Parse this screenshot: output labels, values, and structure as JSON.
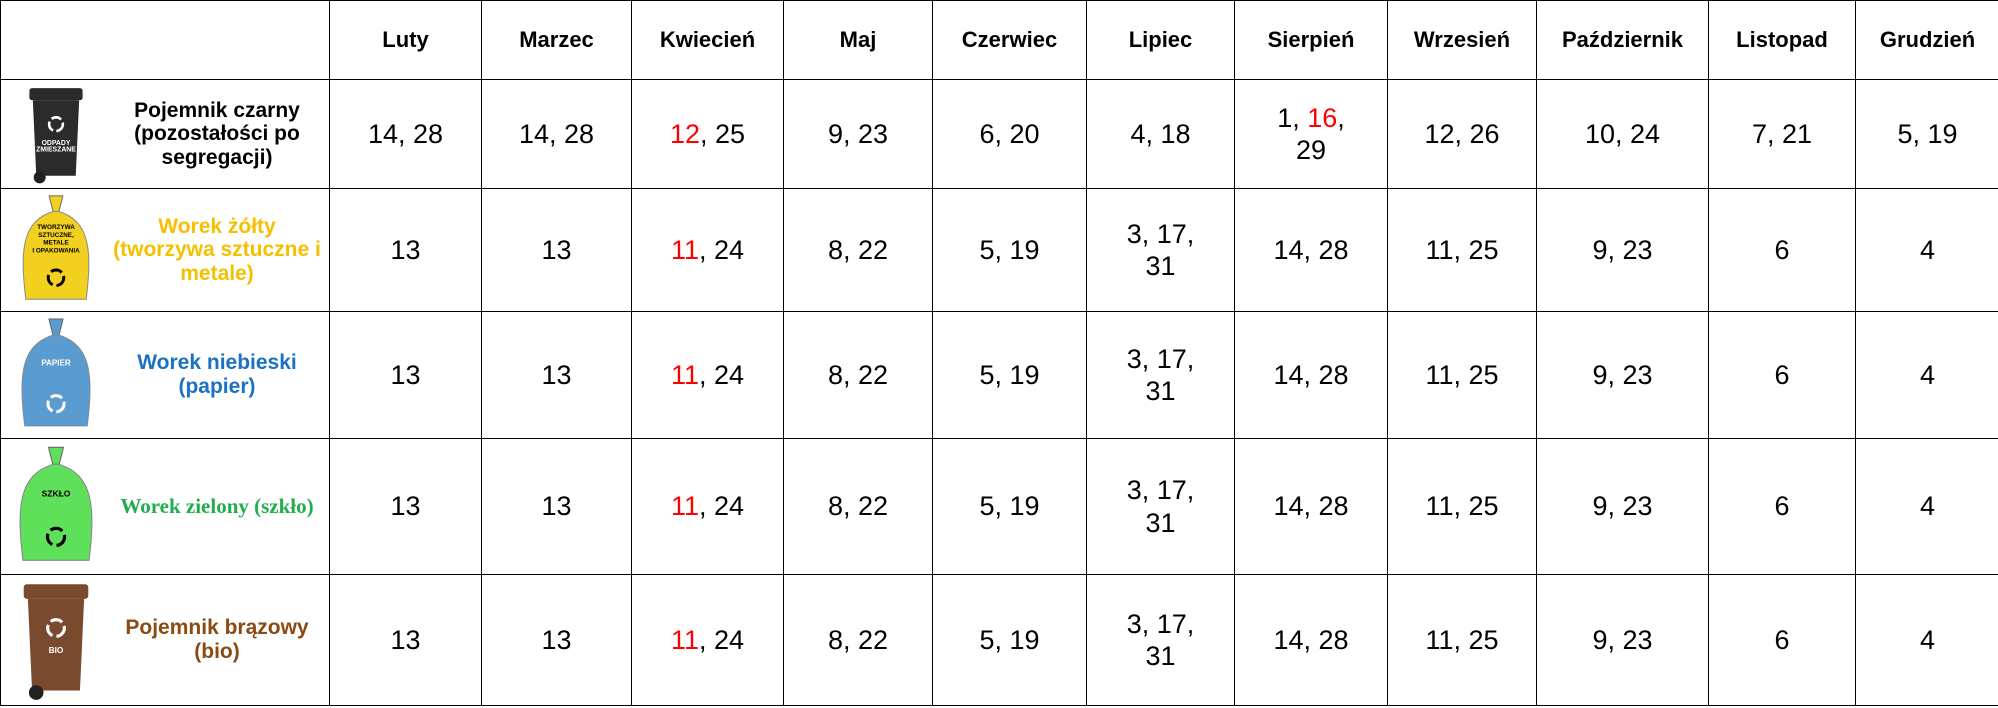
{
  "table": {
    "header": [
      "Luty",
      "Marzec",
      "Kwiecień",
      "Maj",
      "Czerwiec",
      "Lipiec",
      "Sierpień",
      "Wrzesień",
      "Październik",
      "Listopad",
      "Grudzień"
    ],
    "rows": [
      {
        "label": "Pojemnik czarny (pozostałości po segregacji)",
        "color": "#000000",
        "icon_text": [
          "ODPADY",
          "ZMIESZANE"
        ],
        "cells": [
          [
            "14, 28"
          ],
          [
            "14, 28"
          ],
          [
            {
              "text": "12",
              "color": "#ff0000"
            },
            ", 25"
          ],
          [
            "9, 23"
          ],
          [
            "6, 20"
          ],
          [
            "4, 18"
          ],
          [
            "1, ",
            {
              "text": "16",
              "color": "#ff0000"
            },
            ", 29"
          ],
          [
            "12, 26"
          ],
          [
            "10, 24"
          ],
          [
            "7, 21"
          ],
          [
            "5, 19"
          ]
        ]
      },
      {
        "label": "Worek żółty (tworzywa sztuczne i metale)",
        "color": "#f5c000",
        "icon_text": [
          "TWORZYWA",
          "SZTUCZNE,",
          "METALE",
          "I OPAKOWANIA"
        ],
        "cells": [
          [
            "13"
          ],
          [
            "13"
          ],
          [
            {
              "text": "11",
              "color": "#ff0000"
            },
            ", 24"
          ],
          [
            "8, 22"
          ],
          [
            "5, 19"
          ],
          [
            "3, 17, 31"
          ],
          [
            "14, 28"
          ],
          [
            "11, 25"
          ],
          [
            "9, 23"
          ],
          [
            "6"
          ],
          [
            "4"
          ]
        ]
      },
      {
        "label": "Worek niebieski (papier)",
        "color": "#1a72c4",
        "icon_text": [
          "PAPIER"
        ],
        "cells": [
          [
            "13"
          ],
          [
            "13"
          ],
          [
            {
              "text": "11",
              "color": "#ff0000"
            },
            ", 24"
          ],
          [
            "8, 22"
          ],
          [
            "5, 19"
          ],
          [
            "3, 17, 31"
          ],
          [
            "14, 28"
          ],
          [
            "11, 25"
          ],
          [
            "9, 23"
          ],
          [
            "6"
          ],
          [
            "4"
          ]
        ]
      },
      {
        "label": "Worek zielony (szkło)",
        "color": "#1fae4a",
        "icon_text": [
          "SZKŁO"
        ],
        "cells": [
          [
            "13"
          ],
          [
            "13"
          ],
          [
            {
              "text": "11",
              "color": "#ff0000"
            },
            ", 24"
          ],
          [
            "8, 22"
          ],
          [
            "5, 19"
          ],
          [
            "3, 17, 31"
          ],
          [
            "14, 28"
          ],
          [
            "11, 25"
          ],
          [
            "9, 23"
          ],
          [
            "6"
          ],
          [
            "4"
          ]
        ]
      },
      {
        "label": "Pojemnik brązowy (bio)",
        "color": "#8a4a12",
        "icon_text": [
          "BIO"
        ],
        "cells": [
          [
            "13"
          ],
          [
            "13"
          ],
          [
            {
              "text": "11",
              "color": "#ff0000"
            },
            ", 24"
          ],
          [
            "8, 22"
          ],
          [
            "5, 19"
          ],
          [
            "3, 17, 31"
          ],
          [
            "14, 28"
          ],
          [
            "11, 25"
          ],
          [
            "9, 23"
          ],
          [
            "6"
          ],
          [
            "4"
          ]
        ]
      }
    ]
  }
}
